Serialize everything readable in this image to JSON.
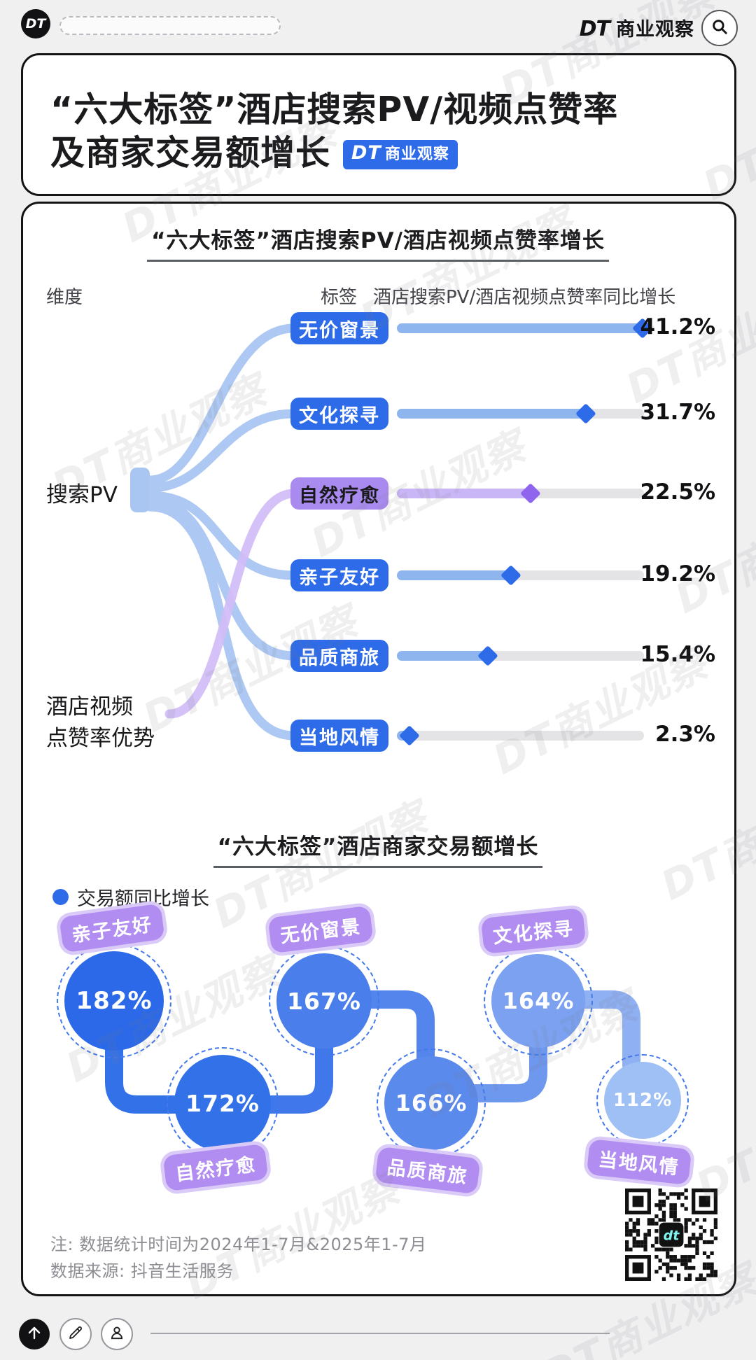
{
  "topbar": {
    "logo_text": "DT",
    "brand_dt": "DT",
    "brand_name": "商业观察"
  },
  "header": {
    "title_line1": "“六大标签”酒店搜索PV/视频点赞率",
    "title_line2": "及商家交易额增长",
    "badge_dt": "DT",
    "badge_name": "商业观察",
    "badge_color": "#2e6be8"
  },
  "chart1_labels": {
    "col_dimension": "维度",
    "col_tag": "标签",
    "col_value": "酒店搜索PV/酒店视频点赞率同比增长",
    "dim_search": "搜索PV",
    "dim_video_line1": "酒店视频",
    "dim_video_line2": "点赞率优势"
  },
  "footnote": {
    "line1": "注: 数据统计时间为2024年1-7月&2025年1-7月",
    "line2": "数据来源: 抖音生活服务"
  },
  "watermark_text": "DT商业观察",
  "qr_logo": "dt",
  "chart_data": [
    {
      "type": "bar",
      "title": "“六大标签”酒店搜索PV/酒店视频点赞率增长",
      "series_name": "酒店搜索PV/酒店视频点赞率同比增长",
      "categories": [
        "无价窗景",
        "文化探寻",
        "自然疗愈",
        "亲子友好",
        "品质商旅",
        "当地风情"
      ],
      "values": [
        41.2,
        31.7,
        22.5,
        19.2,
        15.4,
        2.3
      ],
      "value_labels": [
        "41.2%",
        "31.7%",
        "22.5%",
        "19.2%",
        "15.4%",
        "2.3%"
      ],
      "unit": "%",
      "xlim": [
        0,
        41.2
      ],
      "grid": false,
      "source_nodes": [
        "搜索PV",
        "酒店视频点赞率优势"
      ],
      "highlight_index": 2,
      "colors": {
        "badge": "#2e6be8",
        "badge_text": "#ffffff",
        "bar": "#8fb5ee",
        "diamond": "#2e6be8",
        "track": "#e4e4e6",
        "highlight_badge": "#a98bf0",
        "highlight_badge_text": "#1a1a1c",
        "highlight_bar": "#c9b6f6",
        "highlight_diamond": "#8f65ee",
        "ribbon_blue": "#a9c6f2",
        "ribbon_purple": "#d0bcf7"
      }
    },
    {
      "type": "bubble",
      "title": "“六大标签”酒店商家交易额增长",
      "legend": "交易额同比增长",
      "legend_position": "top-left",
      "categories": [
        "亲子友好",
        "自然疗愈",
        "无价窗景",
        "品质商旅",
        "文化探寻",
        "当地风情"
      ],
      "values": [
        182,
        172,
        167,
        166,
        164,
        112
      ],
      "value_labels": [
        "182%",
        "172%",
        "167%",
        "166%",
        "164%",
        "112%"
      ],
      "unit": "%",
      "legend_dot": "#2e6be8",
      "bubble_colors": [
        "#2b69e8",
        "#3371e9",
        "#4a7feb",
        "#5b8aed",
        "#7ba1f0",
        "#9fc0f4"
      ],
      "sticker_color": "#b28df1"
    }
  ]
}
